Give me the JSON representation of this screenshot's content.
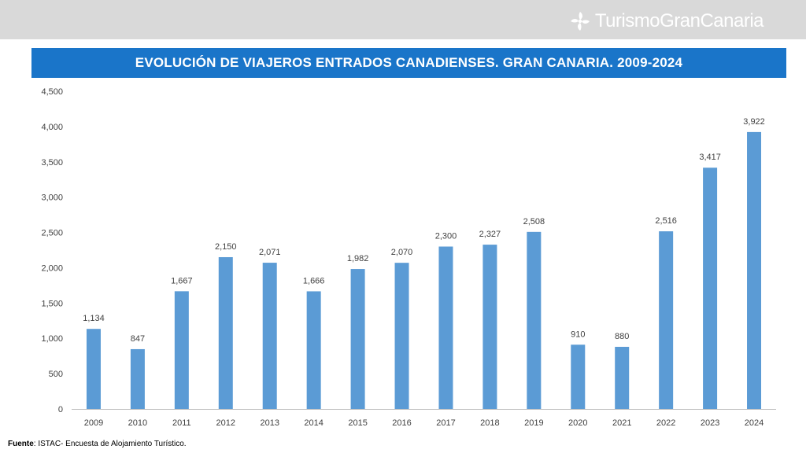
{
  "brand": {
    "name": "TurismoGranCanaria",
    "icon": "gran-canaria-logo-icon"
  },
  "colors": {
    "band": "#d9d9d9",
    "title_bar": "#1a75c9",
    "bar": "#5b9bd5"
  },
  "footer": {
    "label": "Fuente",
    "text": ": ISTAC- Encuesta de Alojamiento Turístico."
  },
  "chart_data": {
    "type": "bar",
    "title": "EVOLUCIÓN DE VIAJEROS ENTRADOS CANADIENSES. GRAN CANARIA. 2009-2024",
    "categories": [
      "2009",
      "2010",
      "2011",
      "2012",
      "2013",
      "2014",
      "2015",
      "2016",
      "2017",
      "2018",
      "2019",
      "2020",
      "2021",
      "2022",
      "2023",
      "2024"
    ],
    "values": [
      1134,
      847,
      1667,
      2150,
      2071,
      1666,
      1982,
      2070,
      2300,
      2327,
      2508,
      910,
      880,
      2516,
      3417,
      3922
    ],
    "value_labels": [
      "1,134",
      "847",
      "1,667",
      "2,150",
      "2,071",
      "1,666",
      "1,982",
      "2,070",
      "2,300",
      "2,327",
      "2,508",
      "910",
      "880",
      "2,516",
      "3,417",
      "3,922"
    ],
    "ylim": [
      0,
      4500
    ],
    "yticks": [
      0,
      500,
      1000,
      1500,
      2000,
      2500,
      3000,
      3500,
      4000,
      4500
    ],
    "ytick_labels": [
      "0",
      "500",
      "1,000",
      "1,500",
      "2,000",
      "2,500",
      "3,000",
      "3,500",
      "4,000",
      "4,500"
    ],
    "xlabel": "",
    "ylabel": "",
    "grid": false,
    "legend": "none"
  }
}
